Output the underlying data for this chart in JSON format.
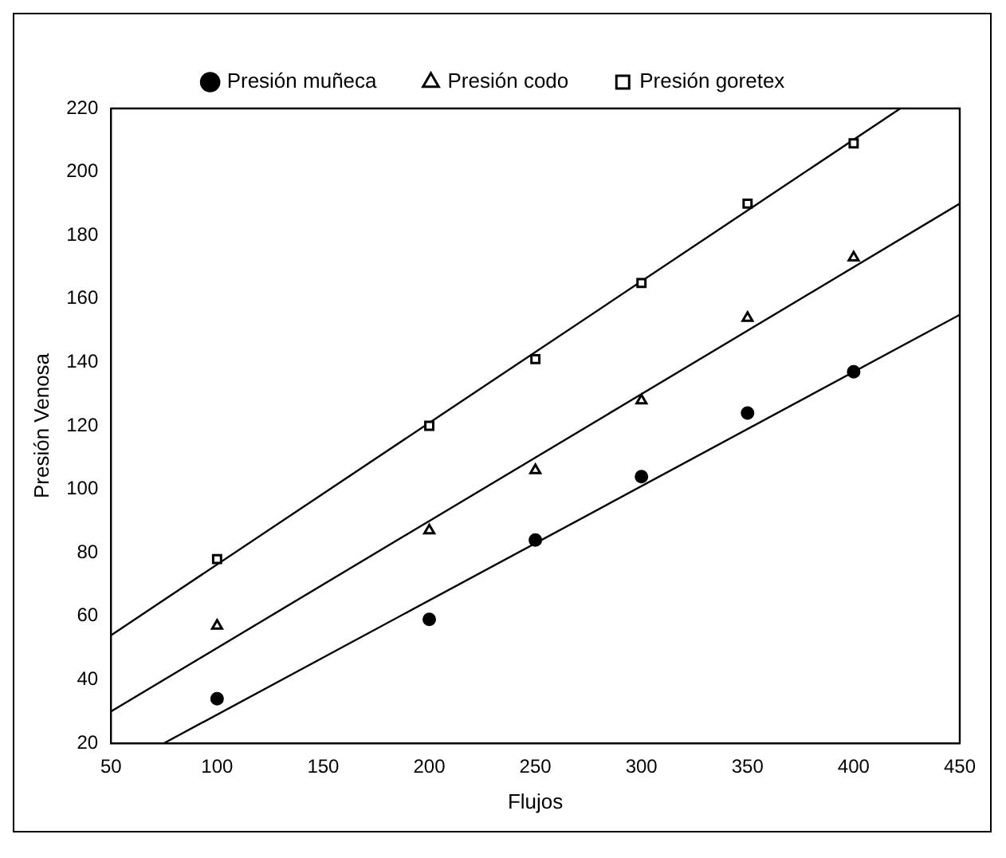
{
  "chart_data": {
    "type": "scatter",
    "xlabel": "Flujos",
    "ylabel": "Presión Venosa",
    "legend": "top",
    "grid": false,
    "xlim": [
      50,
      450
    ],
    "xticks": [
      50,
      100,
      150,
      200,
      250,
      300,
      350,
      400,
      450
    ],
    "ylim": [
      20,
      220
    ],
    "yticks": [
      20,
      40,
      60,
      80,
      100,
      120,
      140,
      160,
      180,
      200,
      220
    ],
    "series": [
      {
        "name": "Presión muñeca",
        "type": "scatter",
        "marker": "circle",
        "color": "#000000",
        "x": [
          100,
          200,
          250,
          300,
          350,
          400
        ],
        "values": [
          34,
          59,
          84,
          104,
          124,
          137
        ]
      },
      {
        "name": "Presión codo",
        "type": "scatter",
        "marker": "triangle",
        "color": "#000000",
        "x": [
          100,
          200,
          250,
          300,
          350,
          400
        ],
        "values": [
          57,
          87,
          106,
          128,
          154,
          173
        ]
      },
      {
        "name": "Presión goretex",
        "type": "scatter",
        "marker": "square",
        "color": "#000000",
        "x": [
          100,
          200,
          250,
          300,
          350,
          400
        ],
        "values": [
          78,
          120,
          141,
          165,
          190,
          209
        ]
      },
      {
        "type": "line",
        "marker": "none",
        "line_style": "solid",
        "color": "#000000",
        "x": [
          75,
          450
        ],
        "values": [
          20,
          155
        ]
      },
      {
        "type": "line",
        "marker": "none",
        "line_style": "solid",
        "color": "#000000",
        "x": [
          50,
          450
        ],
        "values": [
          30,
          190
        ]
      },
      {
        "type": "line",
        "marker": "none",
        "line_style": "solid",
        "color": "#000000",
        "x": [
          50,
          422
        ],
        "values": [
          54,
          220
        ]
      }
    ]
  }
}
